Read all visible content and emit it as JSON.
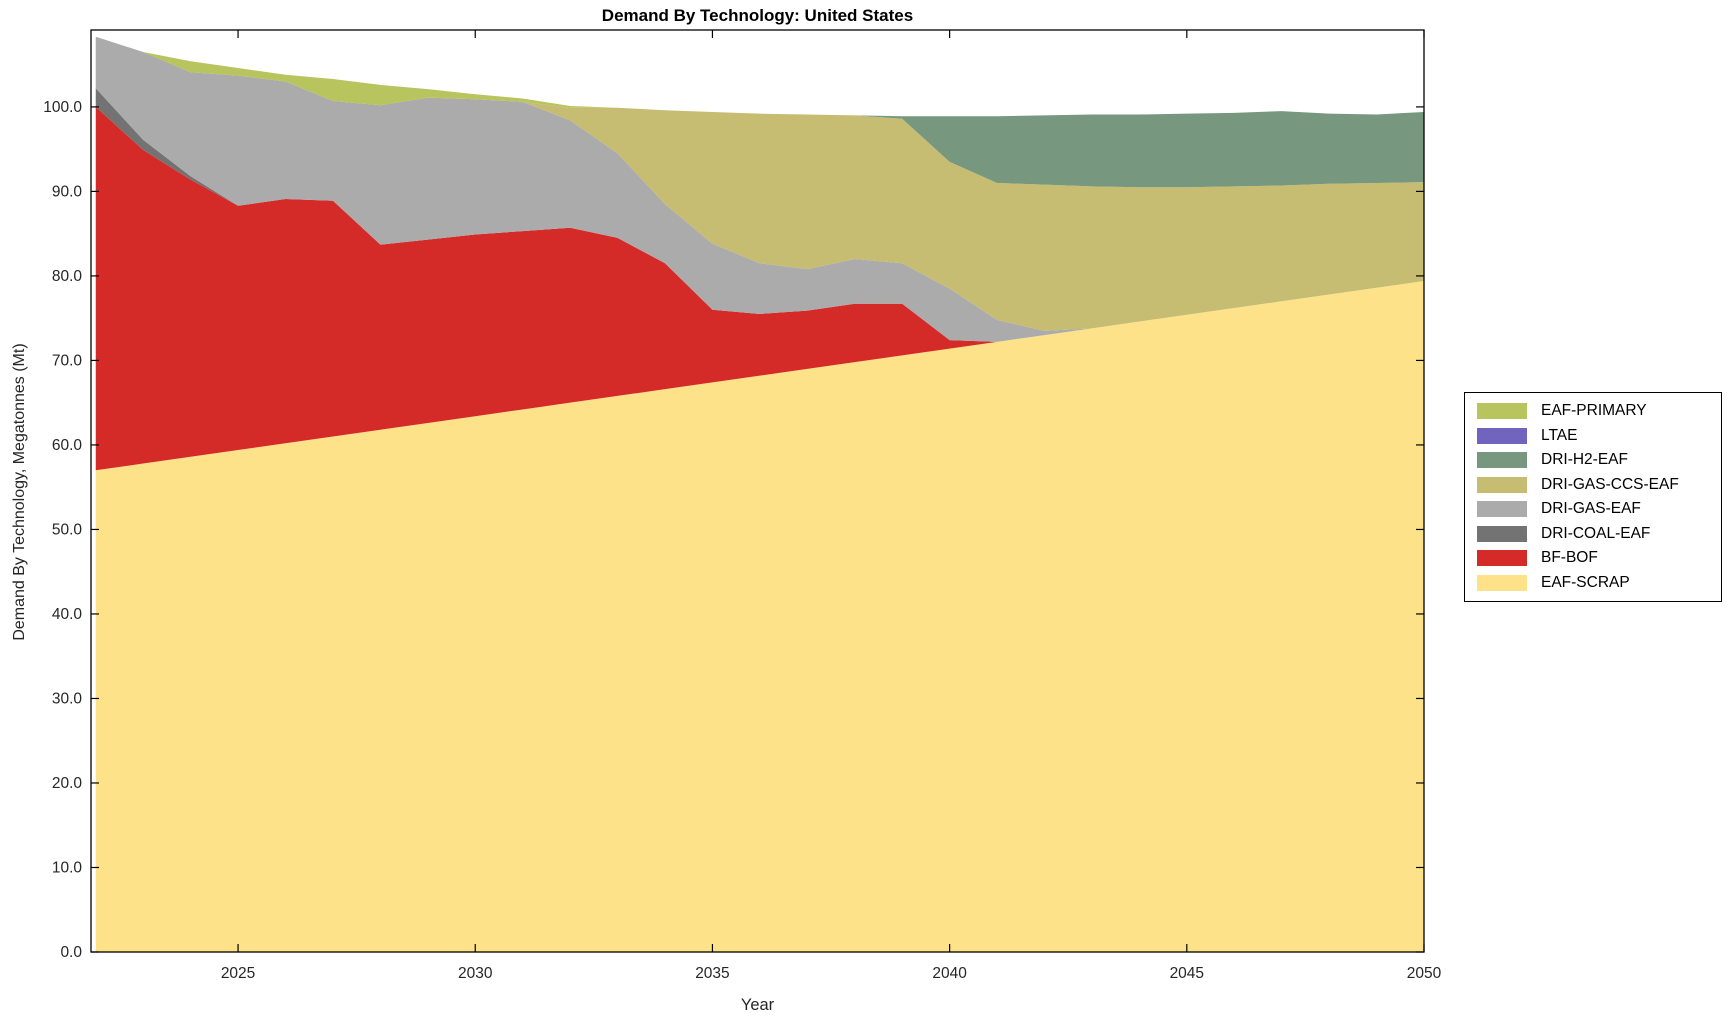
{
  "title": "Demand By Technology: United States",
  "axes": {
    "x_label": "Year",
    "y_label": "Demand By Technology, Megatonnes (Mt)",
    "x_ticks": [
      2025,
      2030,
      2035,
      2040,
      2045,
      2050
    ],
    "y_ticks": [
      0,
      10,
      20,
      30,
      40,
      50,
      60,
      70,
      80,
      90,
      100
    ],
    "y_tick_decimals": 1
  },
  "colors": {
    "frame": "#000000",
    "tick_text": "#262626",
    "background": "#ffffff"
  },
  "chart_data": {
    "type": "area",
    "stacked": true,
    "title": "Demand By Technology: United States",
    "xlabel": "Year",
    "ylabel": "Demand By Technology, Megatonnes (Mt)",
    "xlim": [
      2021.9,
      2050
    ],
    "ylim": [
      0,
      109.1
    ],
    "grid": false,
    "legend_position": "right-outside",
    "x": [
      2022,
      2023,
      2024,
      2025,
      2026,
      2027,
      2028,
      2029,
      2030,
      2031,
      2032,
      2033,
      2034,
      2035,
      2036,
      2037,
      2038,
      2039,
      2040,
      2041,
      2042,
      2043,
      2044,
      2045,
      2046,
      2047,
      2048,
      2049,
      2050
    ],
    "series": [
      {
        "name": "EAF-SCRAP",
        "color": "#FDE28A",
        "values": [
          57.0,
          57.8,
          58.6,
          59.4,
          60.2,
          61.0,
          61.8,
          62.6,
          63.4,
          64.2,
          65.0,
          65.8,
          66.6,
          67.4,
          68.2,
          69.0,
          69.8,
          70.6,
          71.4,
          72.2,
          73.0,
          73.8,
          74.6,
          75.4,
          76.2,
          77.0,
          77.8,
          78.6,
          79.4
        ]
      },
      {
        "name": "BF-BOF",
        "color": "#D42A28",
        "values": [
          43.0,
          37.1,
          32.8,
          28.9,
          28.9,
          27.9,
          21.9,
          21.7,
          21.5,
          21.1,
          20.7,
          18.7,
          14.9,
          8.6,
          7.3,
          6.9,
          6.9,
          6.1,
          1.0,
          0,
          0,
          0,
          0,
          0,
          0,
          0,
          0,
          0,
          0
        ]
      },
      {
        "name": "DRI-COAL-EAF",
        "color": "#737373",
        "values": [
          2.2,
          1.2,
          0.4,
          0,
          0,
          0,
          0,
          0,
          0,
          0,
          0,
          0,
          0,
          0,
          0,
          0,
          0,
          0,
          0,
          0,
          0,
          0,
          0,
          0,
          0,
          0,
          0,
          0,
          0
        ]
      },
      {
        "name": "DRI-GAS-EAF",
        "color": "#ABABAB",
        "values": [
          6.1,
          10.4,
          12.3,
          15.4,
          13.9,
          11.8,
          16.5,
          16.8,
          16.0,
          15.3,
          12.7,
          10.0,
          7.0,
          7.8,
          6.0,
          4.9,
          5.3,
          4.8,
          6.1,
          2.6,
          0.5,
          0,
          0,
          0,
          0,
          0,
          0,
          0,
          0
        ]
      },
      {
        "name": "DRI-GAS-CCS-EAF",
        "color": "#C6BD72",
        "values": [
          0,
          0,
          0,
          0,
          0,
          0,
          0,
          0,
          0,
          0,
          1.5,
          5.4,
          11.1,
          15.6,
          17.7,
          18.3,
          17.0,
          17.1,
          15.0,
          16.2,
          17.3,
          16.8,
          15.9,
          15.1,
          14.4,
          13.7,
          13.1,
          12.4,
          11.7
        ]
      },
      {
        "name": "DRI-H2-EAF",
        "color": "#77977F",
        "values": [
          0,
          0,
          0,
          0,
          0,
          0,
          0,
          0,
          0,
          0,
          0,
          0,
          0,
          0,
          0,
          0,
          0,
          0.3,
          5.4,
          7.9,
          8.2,
          8.5,
          8.6,
          8.7,
          8.7,
          8.8,
          8.3,
          8.1,
          8.3
        ]
      },
      {
        "name": "LTAE",
        "color": "#7164BE",
        "values": [
          0,
          0,
          0,
          0,
          0,
          0,
          0,
          0,
          0,
          0,
          0,
          0,
          0,
          0,
          0,
          0,
          0,
          0,
          0,
          0,
          0,
          0,
          0,
          0,
          0,
          0,
          0,
          0,
          0
        ]
      },
      {
        "name": "EAF-PRIMARY",
        "color": "#B8C45E",
        "values": [
          0,
          0,
          1.3,
          0.9,
          0.8,
          2.6,
          2.4,
          1.0,
          0.6,
          0.4,
          0.2,
          0,
          0,
          0,
          0,
          0,
          0,
          0,
          0,
          0,
          0,
          0,
          0,
          0,
          0,
          0,
          0,
          0,
          0
        ]
      }
    ]
  }
}
